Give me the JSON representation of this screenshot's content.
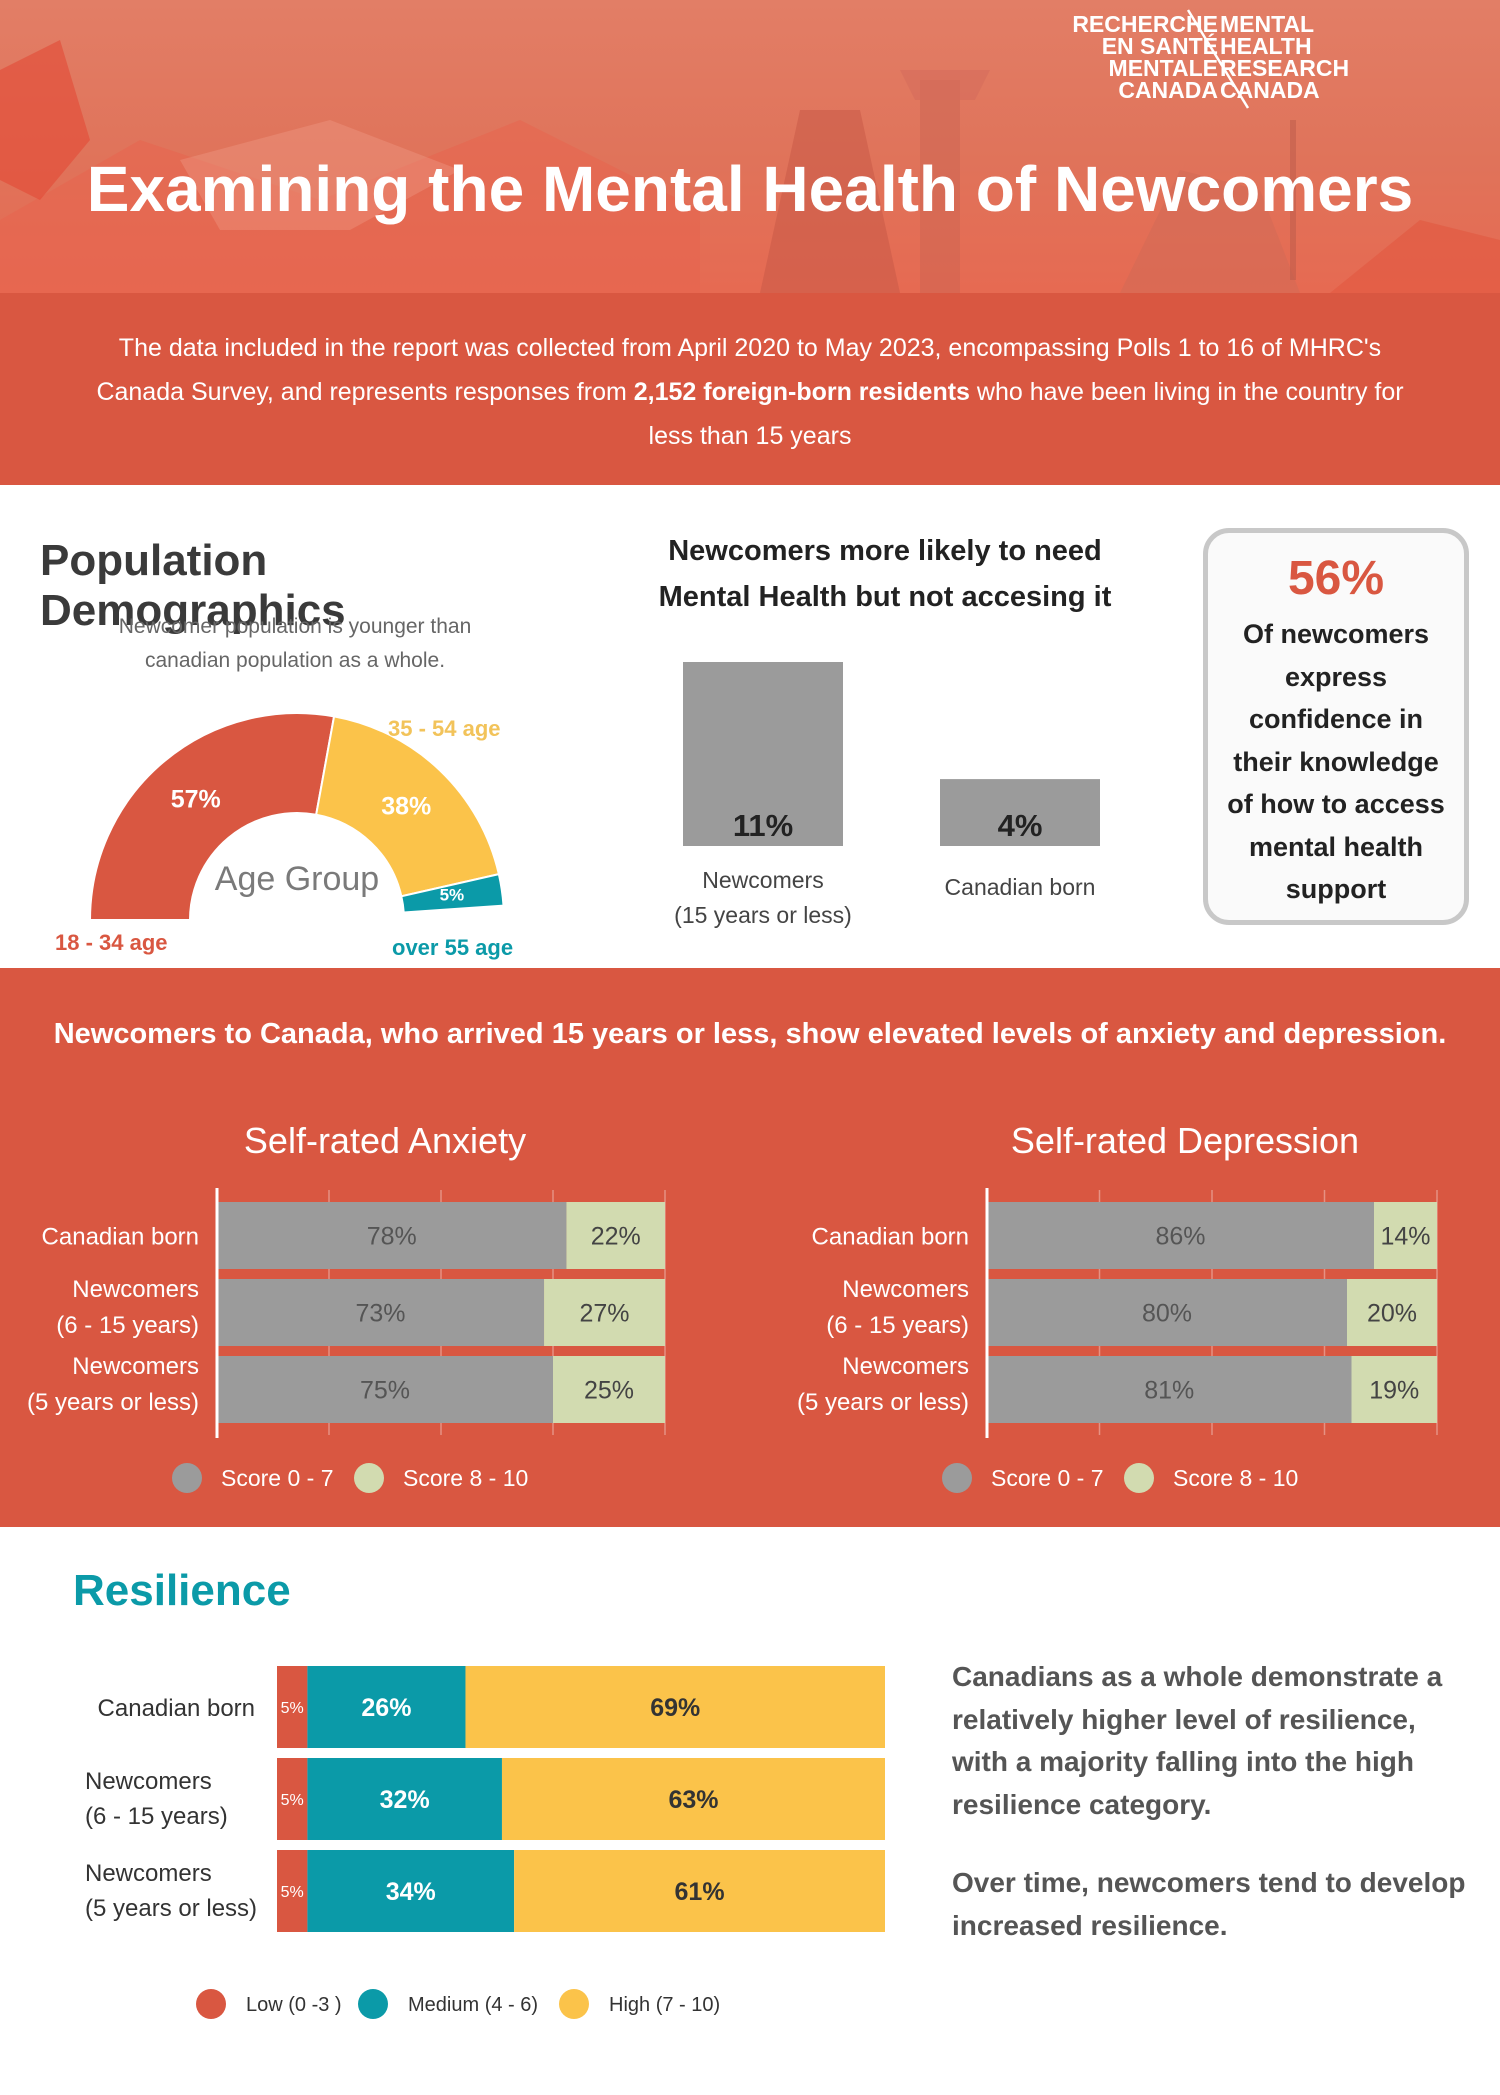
{
  "header": {
    "title": "Examining the Mental Health of Newcomers",
    "logo_fr": [
      "RECHERCHE",
      "EN SANTÉ",
      "MENTALE",
      "CANADA"
    ],
    "logo_en": [
      "MENTAL",
      "HEALTH",
      "RESEARCH",
      "CANADA"
    ]
  },
  "intro": {
    "line1": "The data included in the report was collected from April 2020 to May 2023, encompassing Polls 1 to 16 of MHRC's",
    "line2_pre": "Canada Survey, and represents responses from ",
    "line2_bold": "2,152 foreign-born residents",
    "line2_post": " who have been living in the country for",
    "line3": "less than 15 years"
  },
  "demographics": {
    "title": "Population Demographics",
    "subtitle_1": "Newcomer population is younger than",
    "subtitle_2": "canadian population as a whole.",
    "center_label": "Age Group",
    "colors": {
      "young": "#d95741",
      "mid": "#fbc34a",
      "old": "#0b9aa8"
    }
  },
  "needs": {
    "title_1": "Newcomers more likely to need",
    "title_2": "Mental Health but not accesing it",
    "cat1_line1": "Newcomers",
    "cat1_line2": "(15 years or less)",
    "cat2": "Canadian born"
  },
  "callout": {
    "value": "56%",
    "lines": [
      "Of newcomers",
      "express",
      "confidence in",
      "their knowledge",
      "of how to access",
      "mental health",
      "support"
    ]
  },
  "section2": {
    "headline": "Newcomers to Canada, who arrived 15 years or less, show elevated levels of anxiety and depression.",
    "legend_low": "Score 0 - 7",
    "legend_high": "Score 8 - 10"
  },
  "resilience": {
    "title": "Resilience",
    "text_1": [
      "Canadians as a whole demonstrate a",
      "relatively higher level of resilience,",
      "with a majority falling into the high",
      "resilience category."
    ],
    "text_2": [
      "Over time, newcomers tend to develop",
      "increased resilience."
    ]
  },
  "chart_data": [
    {
      "type": "pie",
      "title": "Age Group",
      "categories": [
        "18 - 34 age",
        "35 - 54 age",
        "over 55 age"
      ],
      "values": [
        57,
        38,
        5
      ],
      "value_labels": [
        "57%",
        "38%",
        "5%"
      ]
    },
    {
      "type": "bar",
      "categories": [
        "Newcomers (15 years or less)",
        "Canadian born"
      ],
      "values": [
        11,
        4
      ],
      "value_labels": [
        "11%",
        "4%"
      ],
      "ylim": [
        0,
        12
      ]
    },
    {
      "type": "bar",
      "title": "Self-rated Anxiety",
      "categories": [
        [
          "Canadian born"
        ],
        [
          "Newcomers",
          "(6 - 15 years)"
        ],
        [
          "Newcomers",
          "(5 years or less)"
        ]
      ],
      "series": [
        {
          "name": "Score 0 - 7",
          "values": [
            78,
            73,
            75
          ]
        },
        {
          "name": "Score 8 - 10",
          "values": [
            22,
            27,
            25
          ]
        }
      ],
      "colors": [
        "#9b9b9b",
        "#d2dbb0"
      ],
      "legend": "bottom"
    },
    {
      "type": "bar",
      "title": "Self-rated Depression",
      "categories": [
        [
          "Canadian born"
        ],
        [
          "Newcomers",
          "(6 - 15 years)"
        ],
        [
          "Newcomers",
          "(5 years or less)"
        ]
      ],
      "series": [
        {
          "name": "Score 0 - 7",
          "values": [
            86,
            80,
            81
          ]
        },
        {
          "name": "Score 8 - 10",
          "values": [
            14,
            20,
            19
          ]
        }
      ],
      "colors": [
        "#9b9b9b",
        "#d2dbb0"
      ],
      "legend": "bottom"
    },
    {
      "type": "bar",
      "title": "Resilience",
      "categories": [
        [
          "Canadian born"
        ],
        [
          "Newcomers",
          "(6 - 15 years)"
        ],
        [
          "Newcomers",
          "(5 years or less)"
        ]
      ],
      "series": [
        {
          "name": "Low (0 -3 )",
          "values": [
            5,
            5,
            5
          ]
        },
        {
          "name": "Medium (4 - 6)",
          "values": [
            26,
            32,
            34
          ]
        },
        {
          "name": "High (7 - 10)",
          "values": [
            69,
            63,
            61
          ]
        }
      ],
      "colors": [
        "#d95741",
        "#0b9aa8",
        "#fbc34a"
      ],
      "legend": "bottom"
    }
  ]
}
